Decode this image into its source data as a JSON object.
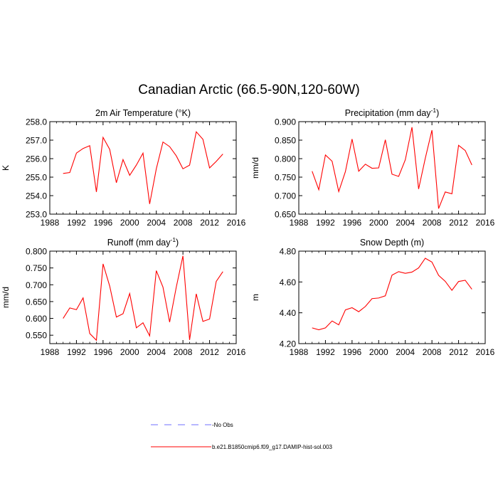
{
  "title": "Canadian Arctic (66.5-90N,120-60W)",
  "chart_data": [
    {
      "type": "line",
      "title": "2m Air Temperature (°K)",
      "ylabel": "K",
      "xlim": [
        1988,
        2016
      ],
      "ylim": [
        253.0,
        258.0
      ],
      "xticks": [
        "1988",
        "1992",
        "1996",
        "2000",
        "2004",
        "2008",
        "2012",
        "2016"
      ],
      "yticks": [
        "253.0",
        "254.0",
        "255.0",
        "256.0",
        "257.0",
        "258.0"
      ],
      "x": [
        1990,
        1991,
        1992,
        1993,
        1994,
        1995,
        1996,
        1997,
        1998,
        1999,
        2000,
        2001,
        2002,
        2003,
        2004,
        2005,
        2006,
        2007,
        2008,
        2009,
        2010,
        2011,
        2012,
        2013,
        2014
      ],
      "series": [
        {
          "values": [
            255.2,
            255.25,
            256.3,
            256.55,
            256.7,
            254.2,
            257.15,
            256.5,
            254.7,
            255.95,
            255.1,
            255.65,
            256.3,
            253.55,
            255.45,
            256.9,
            256.65,
            256.15,
            255.45,
            255.65,
            257.45,
            257.05,
            255.5,
            255.85,
            256.25
          ],
          "color": "#ff0000"
        }
      ]
    },
    {
      "type": "line",
      "title": "Precipitation (mm day",
      "title_sup": "-1",
      "title_end": ")",
      "ylabel": "mm/d",
      "xlim": [
        1988,
        2016
      ],
      "ylim": [
        0.65,
        0.9
      ],
      "xticks": [
        "1988",
        "1992",
        "1996",
        "2000",
        "2004",
        "2008",
        "2012",
        "2016"
      ],
      "yticks": [
        "0.650",
        "0.700",
        "0.750",
        "0.800",
        "0.850",
        "0.900"
      ],
      "x": [
        1990,
        1991,
        1992,
        1993,
        1994,
        1995,
        1996,
        1997,
        1998,
        1999,
        2000,
        2001,
        2002,
        2003,
        2004,
        2005,
        2006,
        2007,
        2008,
        2009,
        2010,
        2011,
        2012,
        2013,
        2014
      ],
      "series": [
        {
          "values": [
            0.766,
            0.716,
            0.81,
            0.793,
            0.711,
            0.765,
            0.853,
            0.766,
            0.785,
            0.774,
            0.775,
            0.851,
            0.758,
            0.752,
            0.797,
            0.885,
            0.718,
            0.801,
            0.877,
            0.665,
            0.71,
            0.705,
            0.836,
            0.822,
            0.783
          ],
          "color": "#ff0000"
        }
      ]
    },
    {
      "type": "line",
      "title": "Runoff (mm day",
      "title_sup": "-1",
      "title_end": ")",
      "ylabel": "mm/d",
      "xlim": [
        1988,
        2016
      ],
      "ylim": [
        0.525,
        0.8
      ],
      "xticks": [
        "1988",
        "1992",
        "1996",
        "2000",
        "2004",
        "2008",
        "2012",
        "2016"
      ],
      "yticks": [
        "0.550",
        "0.600",
        "0.650",
        "0.700",
        "0.750",
        "0.800"
      ],
      "x": [
        1990,
        1991,
        1992,
        1993,
        1994,
        1995,
        1996,
        1997,
        1998,
        1999,
        2000,
        2001,
        2002,
        2003,
        2004,
        2005,
        2006,
        2007,
        2008,
        2009,
        2010,
        2011,
        2012,
        2013,
        2014
      ],
      "series": [
        {
          "values": [
            0.6,
            0.631,
            0.626,
            0.661,
            0.555,
            0.535,
            0.762,
            0.696,
            0.604,
            0.614,
            0.674,
            0.572,
            0.587,
            0.548,
            0.742,
            0.693,
            0.589,
            0.693,
            0.786,
            0.536,
            0.673,
            0.591,
            0.598,
            0.71,
            0.739
          ],
          "color": "#ff0000"
        }
      ]
    },
    {
      "type": "line",
      "title": "Snow Depth (m)",
      "ylabel": "m",
      "xlim": [
        1988,
        2016
      ],
      "ylim": [
        4.2,
        4.8
      ],
      "xticks": [
        "1988",
        "1992",
        "1996",
        "2000",
        "2004",
        "2008",
        "2012",
        "2016"
      ],
      "yticks": [
        "4.20",
        "4.40",
        "4.60",
        "4.80"
      ],
      "x": [
        1990,
        1991,
        1992,
        1993,
        1994,
        1995,
        1996,
        1997,
        1998,
        1999,
        2000,
        2001,
        2002,
        2003,
        2004,
        2005,
        2006,
        2007,
        2008,
        2009,
        2010,
        2011,
        2012,
        2013,
        2014
      ],
      "series": [
        {
          "values": [
            4.302,
            4.29,
            4.302,
            4.347,
            4.322,
            4.419,
            4.433,
            4.407,
            4.441,
            4.492,
            4.496,
            4.51,
            4.644,
            4.667,
            4.656,
            4.664,
            4.691,
            4.754,
            4.729,
            4.643,
            4.604,
            4.546,
            4.603,
            4.611,
            4.553
          ],
          "color": "#ff0000"
        }
      ]
    }
  ],
  "legend": [
    {
      "label": "No Obs",
      "style": "dashed",
      "color": "#6f6fff"
    },
    {
      "label": "b.e21.B1850cmip6.f09_g17.DAMIP-hist-sol.003",
      "style": "solid",
      "color": "#ff0000"
    }
  ]
}
